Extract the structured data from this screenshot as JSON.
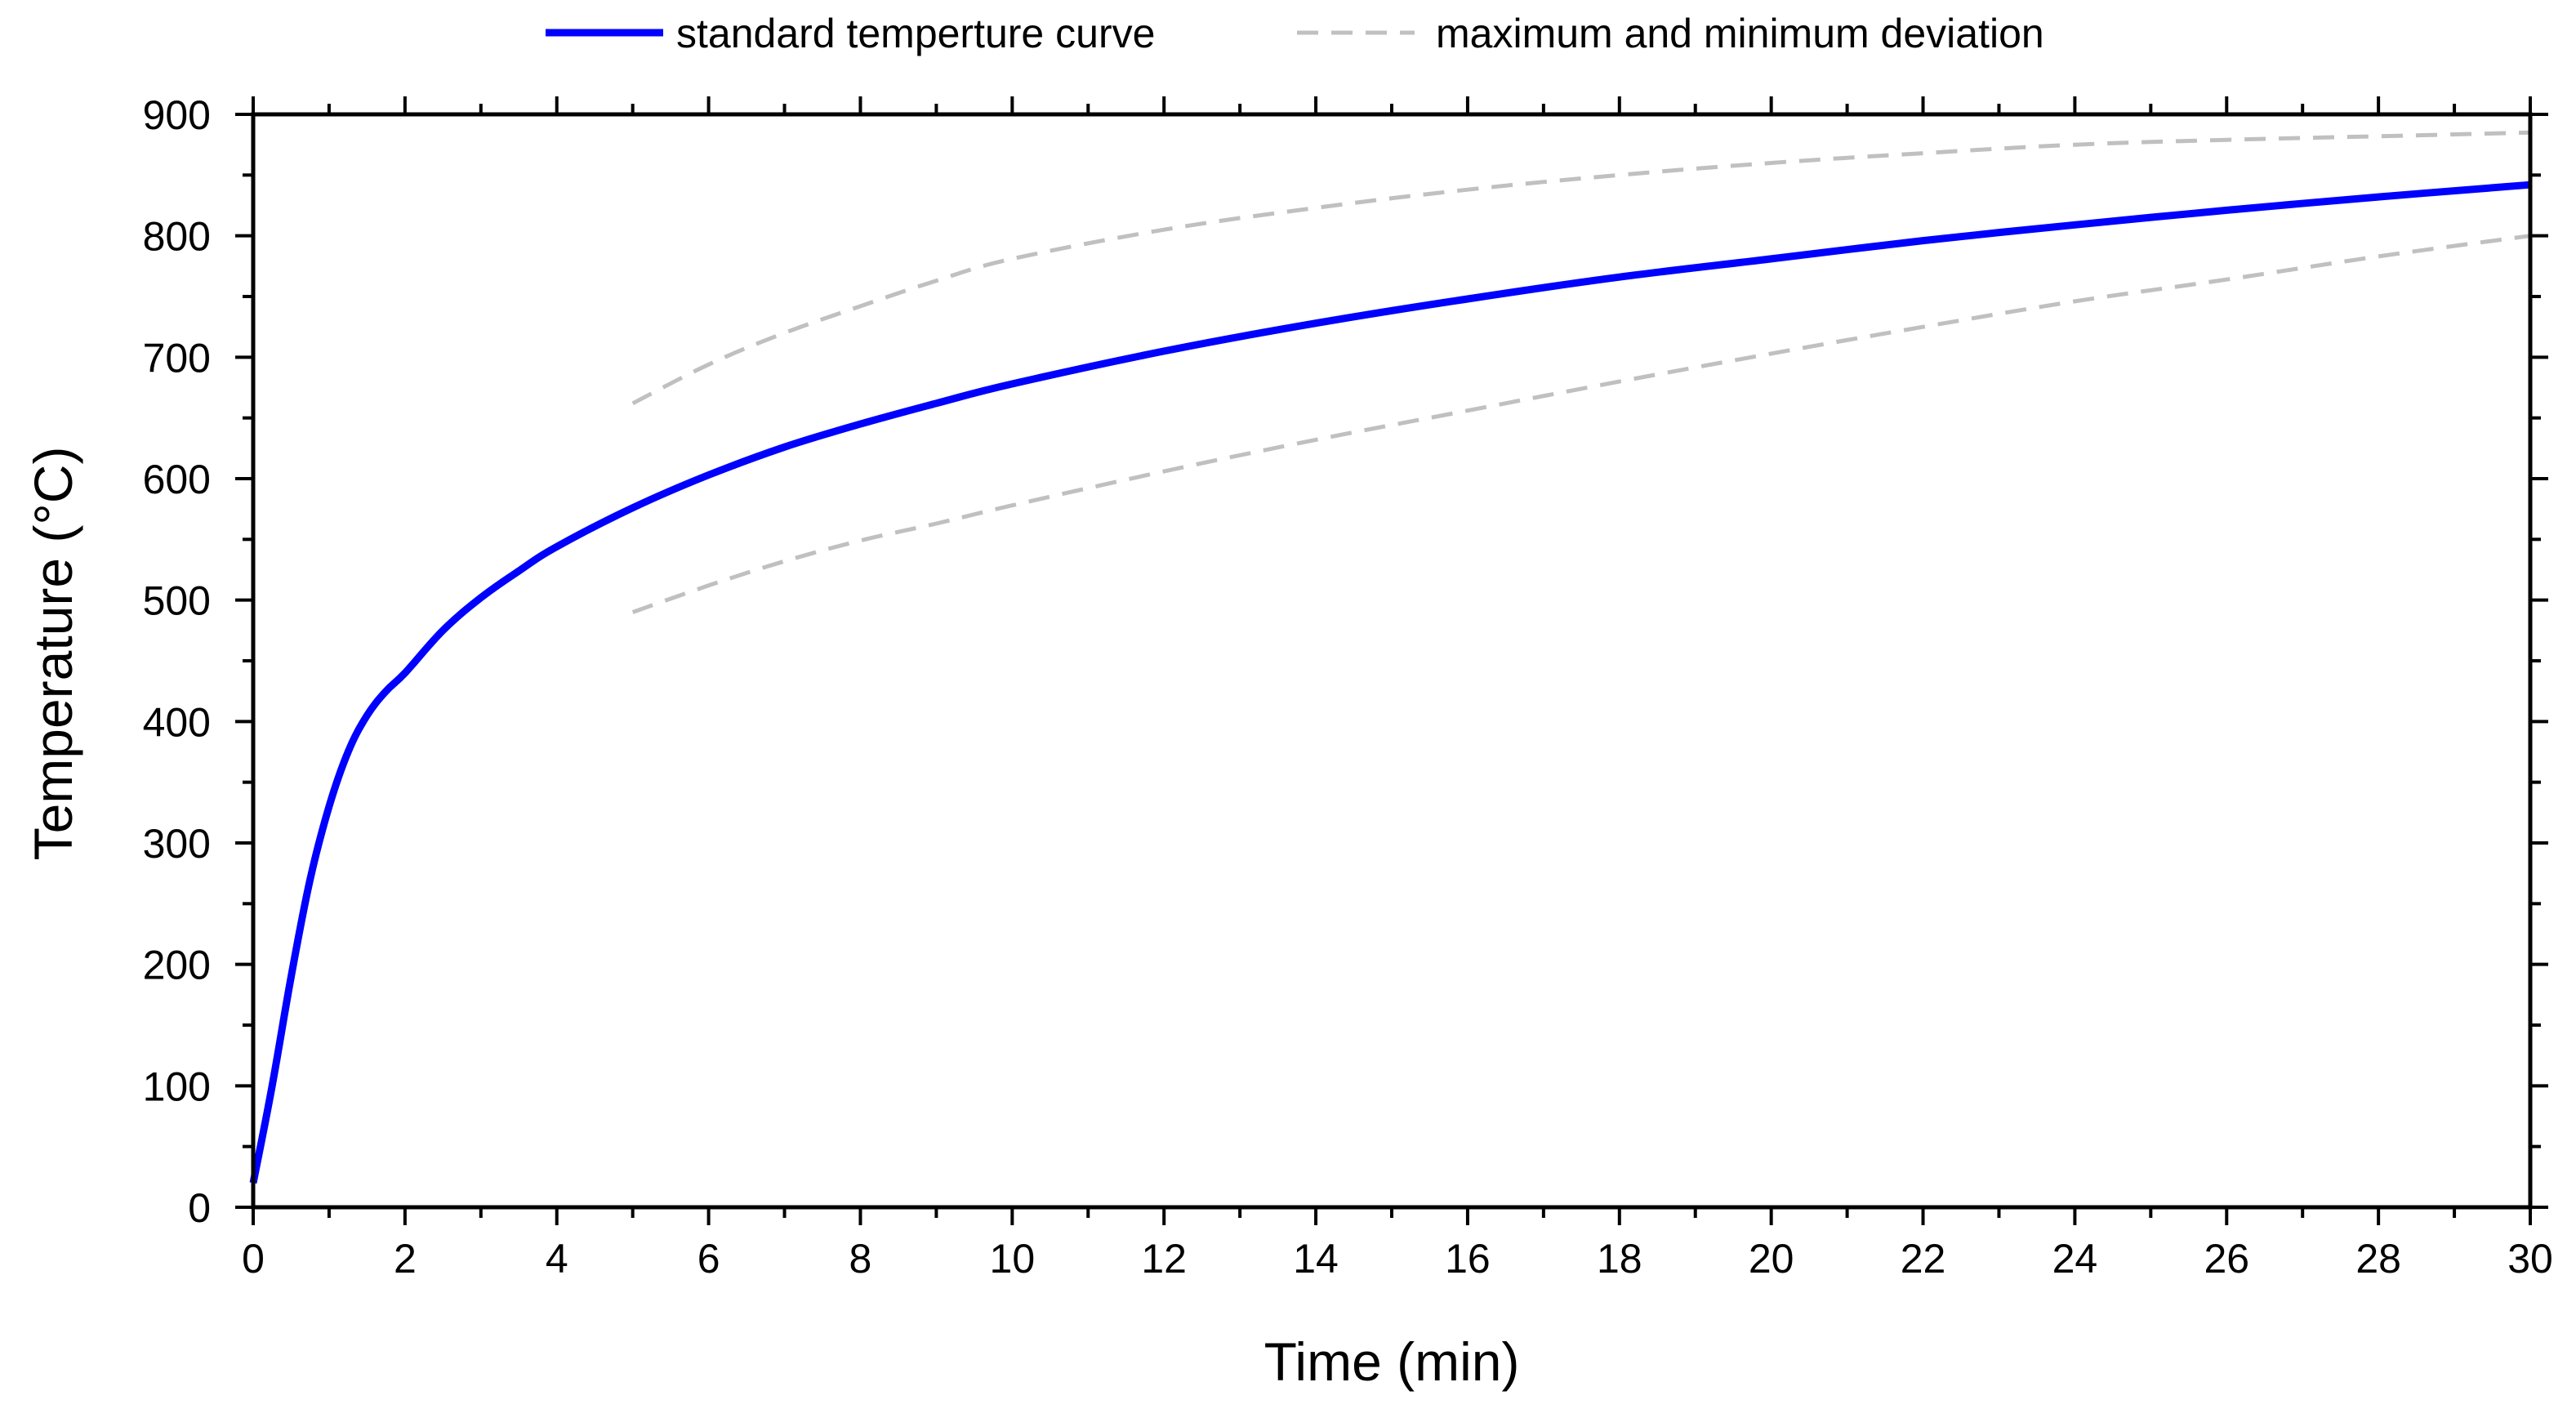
{
  "chart_data": {
    "type": "line",
    "title": "",
    "xlabel": "Time (min)",
    "ylabel": "Temperature (°C)",
    "xlim": [
      0,
      30
    ],
    "ylim": [
      0,
      900
    ],
    "x_ticks": [
      0,
      2,
      4,
      6,
      8,
      10,
      12,
      14,
      16,
      18,
      20,
      22,
      24,
      26,
      28,
      30
    ],
    "x_tick_labels": [
      "0",
      "2",
      "4",
      "6",
      "8",
      "10",
      "12",
      "14",
      "16",
      "18",
      "20",
      "22",
      "24",
      "26",
      "28",
      "30"
    ],
    "y_ticks": [
      0,
      100,
      200,
      300,
      400,
      500,
      600,
      700,
      800,
      900
    ],
    "y_tick_labels": [
      "0",
      "100",
      "200",
      "300",
      "400",
      "500",
      "600",
      "700",
      "800",
      "900"
    ],
    "grid": false,
    "legend_position": "top-center",
    "series": [
      {
        "name": "standard temperture curve",
        "style": "solid",
        "color": "#0000ff",
        "x": [
          0,
          0.25,
          0.5,
          0.75,
          1,
          1.25,
          1.5,
          1.75,
          2,
          2.5,
          3,
          3.5,
          4,
          5,
          6,
          7,
          8,
          9,
          10,
          12,
          14,
          16,
          18,
          20,
          22,
          24,
          26,
          28,
          30
        ],
        "y": [
          20,
          100,
          190,
          270,
          330,
          375,
          405,
          425,
          440,
          475,
          502,
          524,
          544,
          576,
          603,
          626,
          645,
          662,
          678,
          705,
          728,
          748,
          766,
          781,
          796,
          809,
          821,
          832,
          842
        ]
      },
      {
        "name": "maximum and minimum deviation",
        "style": "dashed",
        "color": "#c0c0c0",
        "x": [
          5,
          6,
          7,
          8,
          9,
          10,
          12,
          14,
          16,
          18,
          20,
          22,
          24,
          26,
          28,
          30
        ],
        "y": [
          662,
          694,
          720,
          742,
          763,
          781,
          805,
          823,
          838,
          850,
          860,
          868,
          875,
          879,
          882,
          885
        ]
      },
      {
        "name": "minimum deviation",
        "style": "dashed",
        "color": "#c0c0c0",
        "x": [
          5,
          6,
          7,
          8,
          9,
          10,
          12,
          14,
          16,
          18,
          20,
          22,
          24,
          26,
          28,
          30
        ],
        "y": [
          490,
          512,
          532,
          549,
          563,
          578,
          606,
          632,
          656,
          680,
          703,
          725,
          746,
          764,
          783,
          800
        ]
      }
    ],
    "legend": [
      {
        "label": "standard temperture curve",
        "style": "solid",
        "color": "#0000ff"
      },
      {
        "label": "maximum and minimum deviation",
        "style": "dashed",
        "color": "#c0c0c0"
      }
    ]
  },
  "colors": {
    "axis": "#000000",
    "standard": "#0000ff",
    "deviation": "#c0c0c0",
    "background": "#ffffff"
  }
}
